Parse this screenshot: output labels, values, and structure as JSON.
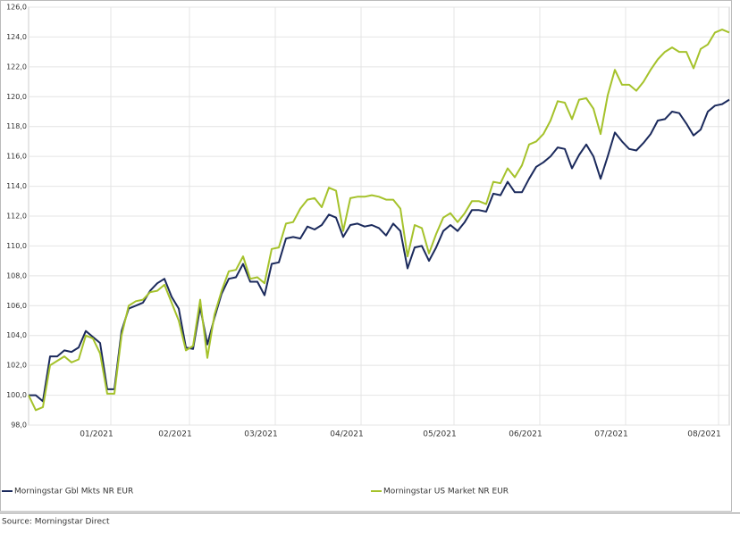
{
  "chart_data": {
    "type": "line",
    "categories": [
      null,
      null,
      null,
      null,
      null,
      null,
      null,
      null,
      null,
      null,
      "01/2021",
      null,
      null,
      null,
      null,
      null,
      null,
      null,
      null,
      null,
      null,
      "02/2021",
      null,
      null,
      null,
      null,
      null,
      null,
      null,
      null,
      null,
      null,
      null,
      "03/2021",
      null,
      null,
      null,
      null,
      null,
      null,
      null,
      null,
      null,
      null,
      null,
      "04/2021",
      null,
      null,
      null,
      null,
      null,
      null,
      null,
      null,
      null,
      null,
      null,
      null,
      "05/2021",
      null,
      null,
      null,
      null,
      null,
      null,
      null,
      null,
      null,
      null,
      null,
      "06/2021",
      null,
      null,
      null,
      null,
      null,
      null,
      null,
      null,
      null,
      null,
      null,
      "07/2021",
      null,
      null,
      null,
      null,
      null,
      null,
      null,
      null,
      null,
      null,
      null,
      null,
      "08/2021",
      null,
      null,
      null
    ],
    "series": [
      {
        "name": "Morningstar Gbl Mkts NR EUR",
        "color": "#1b2a5c",
        "values": [
          100.0,
          100.0,
          99.6,
          102.6,
          102.6,
          103.0,
          102.9,
          103.2,
          104.3,
          103.9,
          103.5,
          100.4,
          100.4,
          104.3,
          105.8,
          106.0,
          106.2,
          107.0,
          107.5,
          107.8,
          106.6,
          105.8,
          103.2,
          103.1,
          105.9,
          103.4,
          105.2,
          106.8,
          107.8,
          107.9,
          108.8,
          107.6,
          107.6,
          106.7,
          108.8,
          108.9,
          110.5,
          110.6,
          110.5,
          111.3,
          111.1,
          111.4,
          112.1,
          111.9,
          110.6,
          111.4,
          111.5,
          111.3,
          111.4,
          111.2,
          110.7,
          111.5,
          111.0,
          108.5,
          109.9,
          110.0,
          109.0,
          109.9,
          111.0,
          111.4,
          111.0,
          111.6,
          112.4,
          112.4,
          112.3,
          113.5,
          113.4,
          114.3,
          113.6,
          113.6,
          114.5,
          115.3,
          115.6,
          116.0,
          116.6,
          116.5,
          115.2,
          116.1,
          116.8,
          116.0,
          114.5,
          116.0,
          117.6,
          117.0,
          116.5,
          116.4,
          116.9,
          117.5,
          118.4,
          118.5,
          119.0,
          118.9,
          118.2,
          117.4,
          117.8,
          119.0,
          119.4,
          119.5,
          119.8
        ]
      },
      {
        "name": "Morningstar US Market NR EUR",
        "color": "#a5c22b",
        "values": [
          100.0,
          99.0,
          99.2,
          102.0,
          102.3,
          102.6,
          102.2,
          102.4,
          104.0,
          103.8,
          102.8,
          100.1,
          100.1,
          104.0,
          106.0,
          106.3,
          106.4,
          106.9,
          107.0,
          107.4,
          106.2,
          105.0,
          103.0,
          103.3,
          106.4,
          102.5,
          105.4,
          107.0,
          108.3,
          108.4,
          109.3,
          107.8,
          107.9,
          107.5,
          109.8,
          109.9,
          111.5,
          111.6,
          112.5,
          113.1,
          113.2,
          112.6,
          113.9,
          113.7,
          111.0,
          113.2,
          113.3,
          113.3,
          113.4,
          113.3,
          113.1,
          113.1,
          112.5,
          109.3,
          111.4,
          111.2,
          109.5,
          110.8,
          111.9,
          112.2,
          111.6,
          112.2,
          113.0,
          113.0,
          112.8,
          114.3,
          114.2,
          115.2,
          114.6,
          115.4,
          116.8,
          117.0,
          117.5,
          118.4,
          119.7,
          119.6,
          118.5,
          119.8,
          119.9,
          119.2,
          117.5,
          120.1,
          121.8,
          120.8,
          120.8,
          120.4,
          121.0,
          121.8,
          122.5,
          123.0,
          123.3,
          123.0,
          123.0,
          121.9,
          123.2,
          123.5,
          124.3,
          124.5,
          124.3
        ]
      }
    ],
    "ylim": [
      98,
      126
    ],
    "yticks": [
      {
        "value": 98,
        "label": "98,0"
      },
      {
        "value": 100,
        "label": "100,0"
      },
      {
        "value": 102,
        "label": "102,0"
      },
      {
        "value": 104,
        "label": "104,0"
      },
      {
        "value": 106,
        "label": "106,0"
      },
      {
        "value": 108,
        "label": "108,0"
      },
      {
        "value": 110,
        "label": "110,0"
      },
      {
        "value": 112,
        "label": "112,0"
      },
      {
        "value": 114,
        "label": "114,0"
      },
      {
        "value": 116,
        "label": "116,0"
      },
      {
        "value": 118,
        "label": "118,0"
      },
      {
        "value": 120,
        "label": "120,0"
      },
      {
        "value": 122,
        "label": "122,0"
      },
      {
        "value": 124,
        "label": "124,0"
      },
      {
        "value": 126,
        "label": "126,0"
      }
    ],
    "grid": true,
    "legend": "bottom",
    "source": "Source: Morningstar Direct"
  }
}
